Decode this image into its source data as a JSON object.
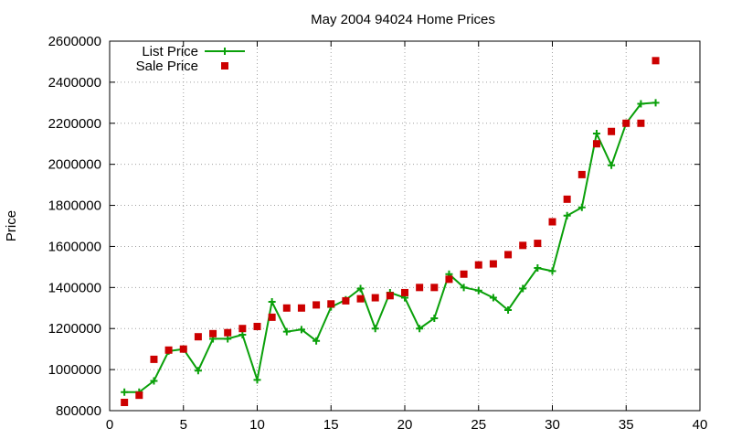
{
  "chart_data": {
    "type": "line",
    "title": "May 2004 94024 Home Prices",
    "xlabel": "",
    "ylabel": "Price",
    "xlim": [
      0,
      40
    ],
    "ylim": [
      800000,
      2600000
    ],
    "x_ticks": [
      0,
      5,
      10,
      15,
      20,
      25,
      30,
      35,
      40
    ],
    "y_ticks": [
      800000,
      1000000,
      1200000,
      1400000,
      1600000,
      1800000,
      2000000,
      2200000,
      2400000,
      2600000
    ],
    "grid": true,
    "legend_position": "top-left",
    "series": [
      {
        "name": "List Price",
        "style": "line+cross",
        "color": "#0aa00a",
        "x": [
          1,
          2,
          3,
          4,
          5,
          6,
          7,
          8,
          9,
          10,
          11,
          12,
          13,
          14,
          15,
          16,
          17,
          18,
          19,
          20,
          21,
          22,
          23,
          24,
          25,
          26,
          27,
          28,
          29,
          30,
          31,
          32,
          33,
          34,
          35,
          36,
          37
        ],
        "values": [
          890000,
          890000,
          945000,
          1090000,
          1100000,
          995000,
          1150000,
          1150000,
          1170000,
          950000,
          1330000,
          1185000,
          1195000,
          1140000,
          1305000,
          1340000,
          1395000,
          1200000,
          1375000,
          1350000,
          1200000,
          1250000,
          1465000,
          1400000,
          1385000,
          1350000,
          1290000,
          1395000,
          1495000,
          1480000,
          1750000,
          1790000,
          2150000,
          1995000,
          2200000,
          2295000,
          2300000
        ]
      },
      {
        "name": "Sale Price",
        "style": "square",
        "color": "#cc0000",
        "x": [
          1,
          2,
          3,
          4,
          5,
          6,
          7,
          8,
          9,
          10,
          11,
          12,
          13,
          14,
          15,
          16,
          17,
          18,
          19,
          20,
          21,
          22,
          23,
          24,
          25,
          26,
          27,
          28,
          29,
          30,
          31,
          32,
          33,
          34,
          35,
          36,
          37
        ],
        "values": [
          840000,
          875000,
          1050000,
          1095000,
          1100000,
          1160000,
          1175000,
          1180000,
          1200000,
          1210000,
          1255000,
          1300000,
          1300000,
          1315000,
          1320000,
          1335000,
          1345000,
          1350000,
          1360000,
          1375000,
          1400000,
          1400000,
          1440000,
          1465000,
          1510000,
          1515000,
          1560000,
          1605000,
          1615000,
          1720000,
          1830000,
          1950000,
          2100000,
          2160000,
          2200000,
          2200000,
          2505000
        ]
      }
    ]
  }
}
